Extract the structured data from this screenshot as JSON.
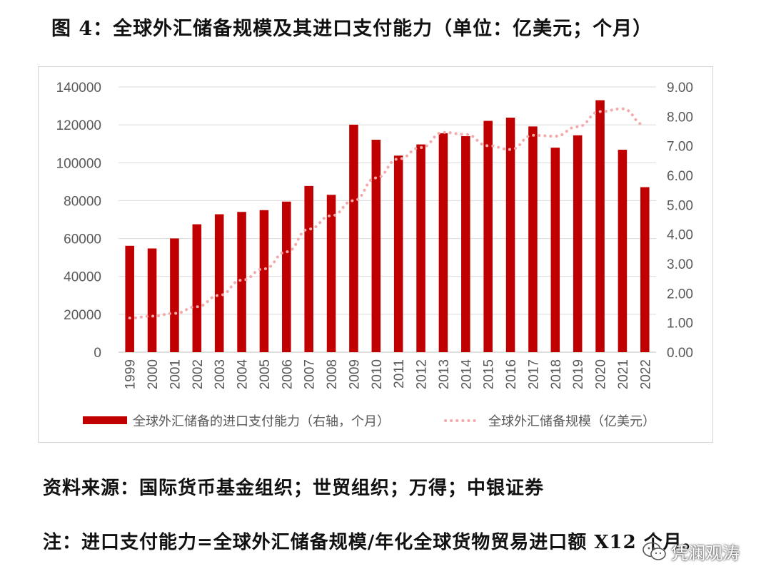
{
  "figure": {
    "title": "图 4：全球外汇储备规模及其进口支付能力（单位：亿美元；个月）"
  },
  "chart_data": {
    "type": "bar",
    "categories": [
      "1999",
      "2000",
      "2001",
      "2002",
      "2003",
      "2004",
      "2005",
      "2006",
      "2007",
      "2008",
      "2009",
      "2010",
      "2011",
      "2012",
      "2013",
      "2014",
      "2015",
      "2016",
      "2017",
      "2018",
      "2019",
      "2020",
      "2021",
      "2022"
    ],
    "series": [
      {
        "name": "全球外汇储备的进口支付能力（右轴，个月）",
        "type": "bar",
        "axis": "right",
        "color": "#c00000",
        "values": [
          3.61,
          3.52,
          3.86,
          4.34,
          4.68,
          4.76,
          4.82,
          5.11,
          5.64,
          5.34,
          7.72,
          7.21,
          6.67,
          7.05,
          7.43,
          7.33,
          7.85,
          7.96,
          7.66,
          6.94,
          7.36,
          8.55,
          6.87,
          5.6
        ]
      },
      {
        "name": "全球外汇储备规模（亿美元）",
        "type": "line",
        "style": "dotted",
        "axis": "left",
        "color": "#f2aaaa",
        "values": [
          18000,
          19000,
          20500,
          24000,
          30000,
          38000,
          44000,
          53000,
          65000,
          72000,
          80000,
          92000,
          102000,
          108000,
          116000,
          115000,
          109000,
          107000,
          114500,
          114000,
          119000,
          127000,
          128500,
          120000
        ]
      }
    ],
    "y_left": {
      "ylim": [
        0,
        140000
      ],
      "ticks": [
        "0",
        "20000",
        "40000",
        "60000",
        "80000",
        "100000",
        "120000",
        "140000"
      ]
    },
    "y_right": {
      "ylim": [
        0,
        9
      ],
      "ticks": [
        "0.00",
        "1.00",
        "2.00",
        "3.00",
        "4.00",
        "5.00",
        "6.00",
        "7.00",
        "8.00",
        "9.00"
      ]
    },
    "grid": true,
    "legend_position": "bottom"
  },
  "source_text": "资料来源：国际货币基金组织；世贸组织；万得；中银证券",
  "note_text": "注：进口支付能力=全球外汇储备规模/年化全球货物贸易进口额 X12 个月。",
  "watermark": {
    "text": "凭澜观涛",
    "icon": "wechat-icon"
  }
}
